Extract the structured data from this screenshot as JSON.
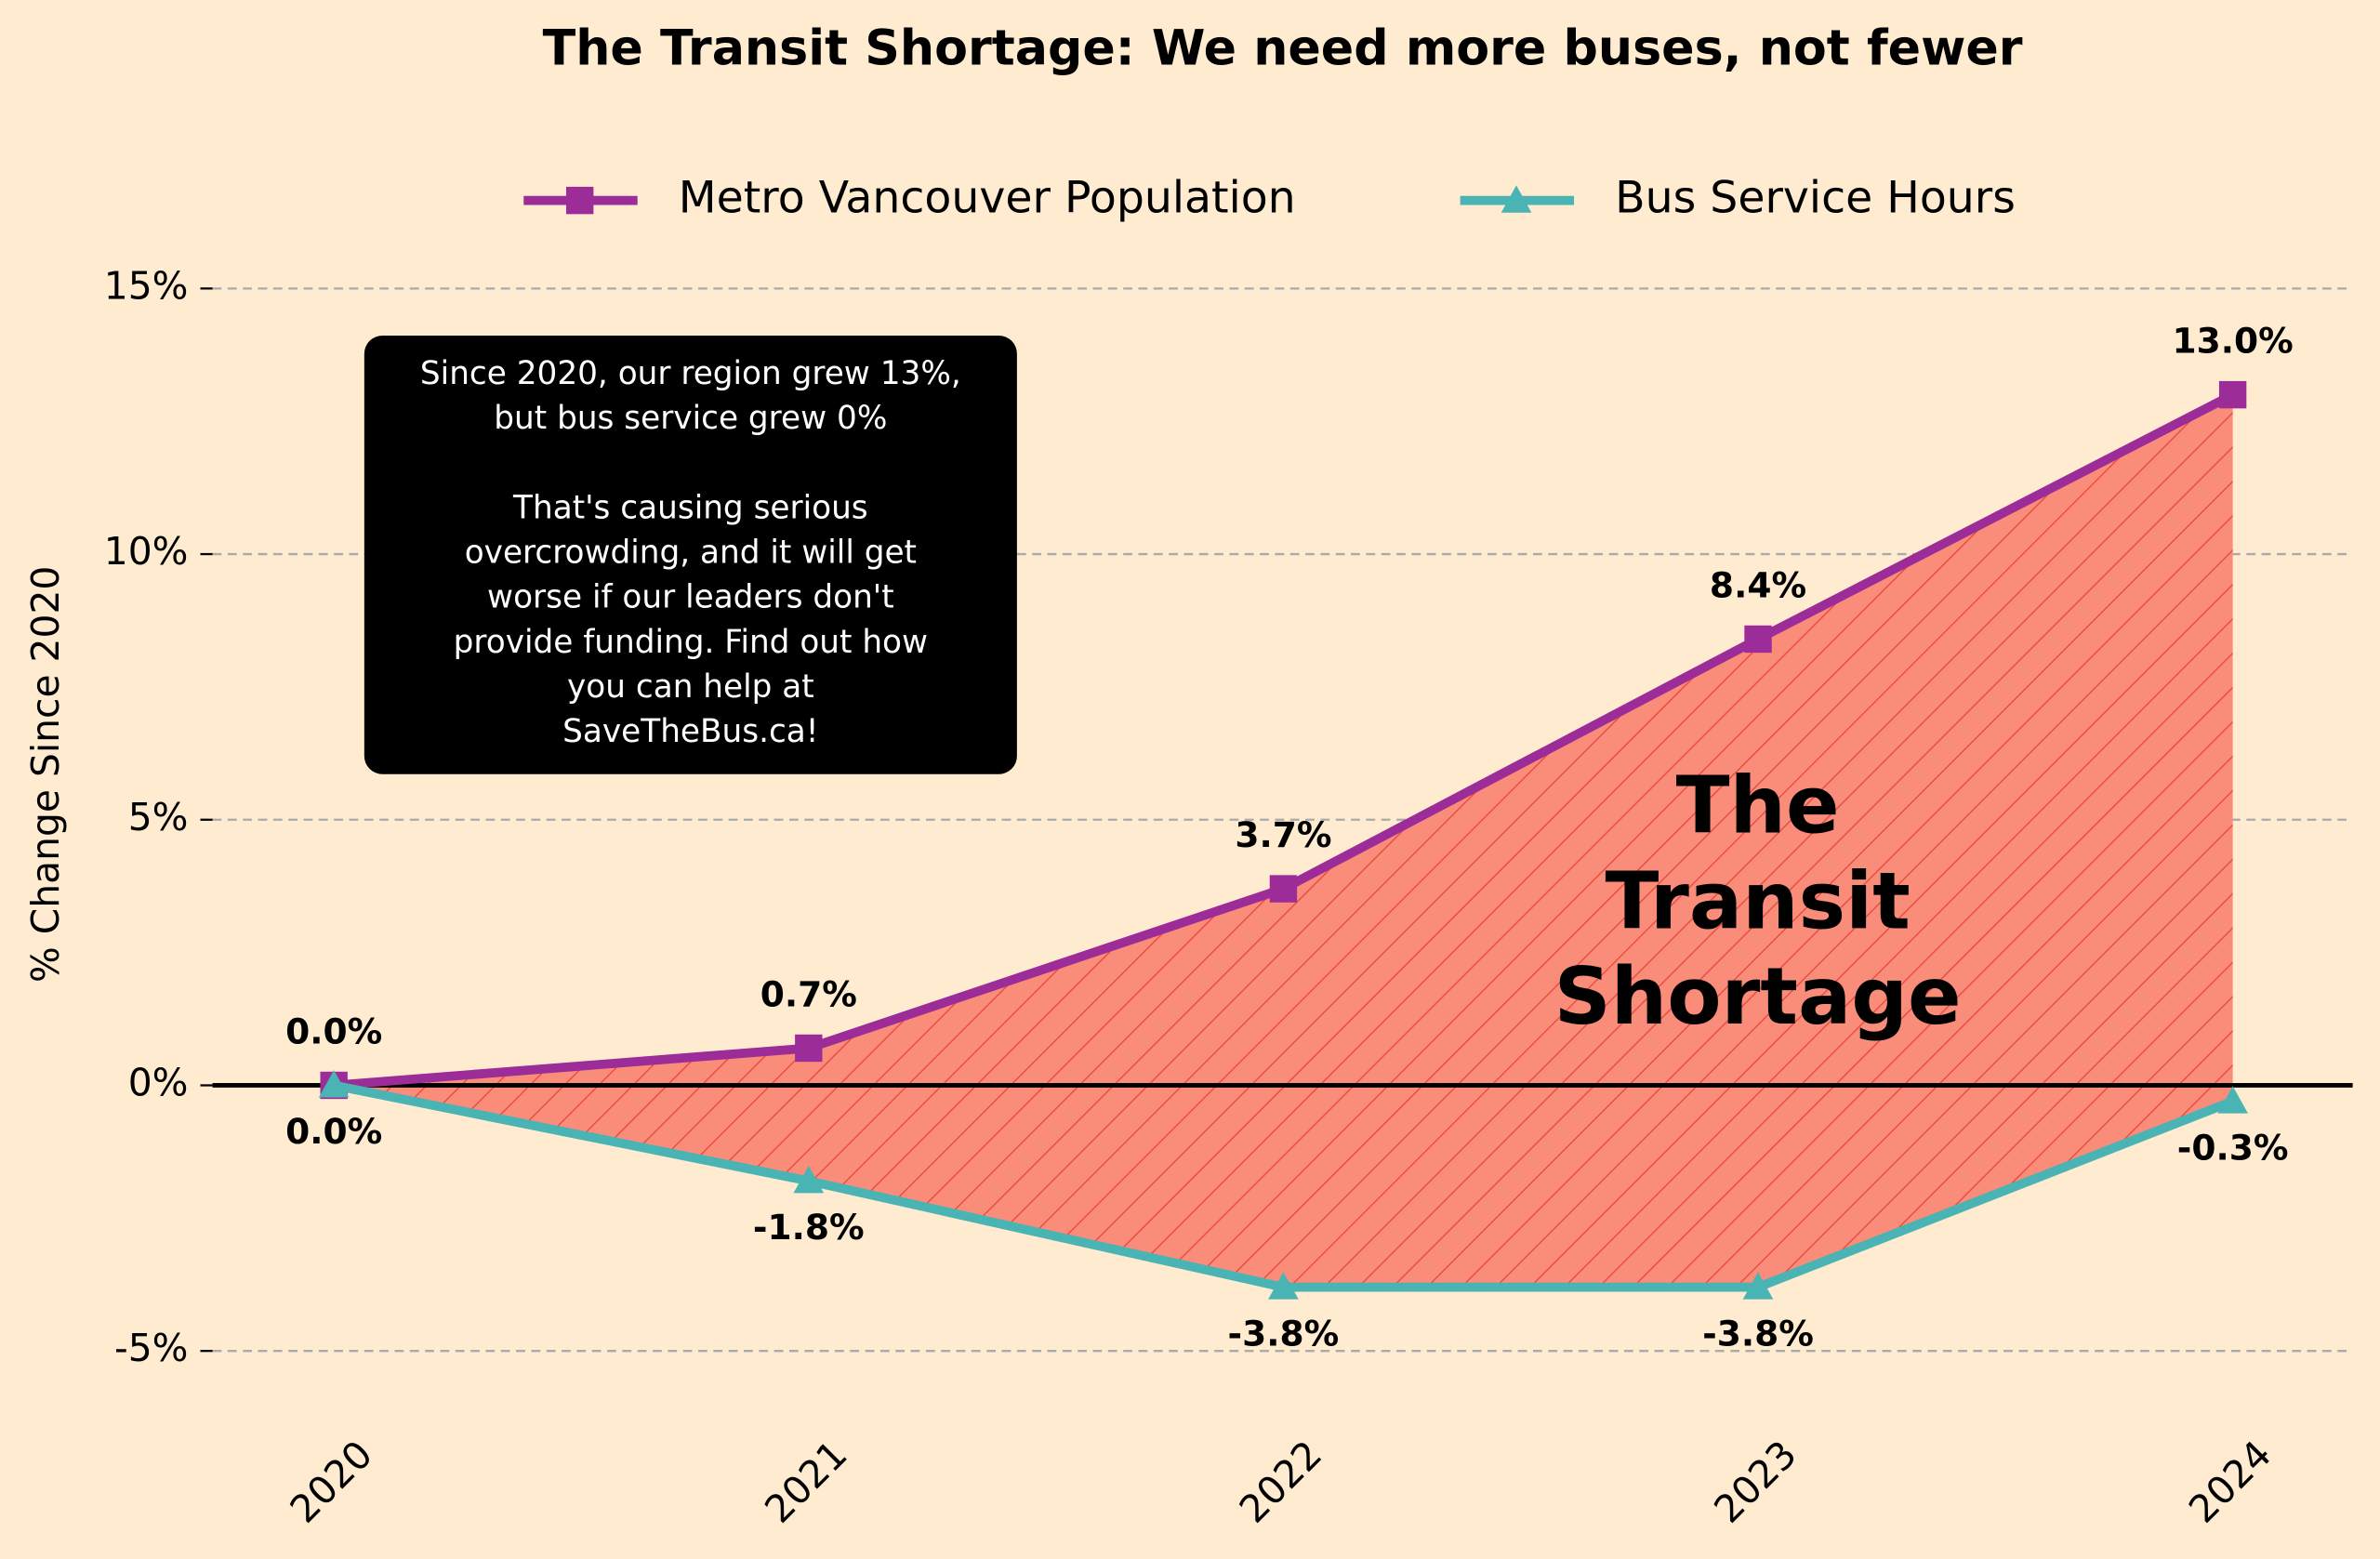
{
  "chart_data": {
    "type": "line",
    "title": "The Transit Shortage: We need more buses, not fewer",
    "y_label": "% Change Since 2020",
    "categories": [
      "2020",
      "2021",
      "2022",
      "2023",
      "2024"
    ],
    "series": [
      {
        "name": "Metro Vancouver Population",
        "color": "#9c2c98",
        "marker": "square",
        "values": [
          0.0,
          0.7,
          3.7,
          8.4,
          13.0
        ],
        "value_labels": [
          "0.0%",
          "0.7%",
          "3.7%",
          "8.4%",
          "13.0%"
        ]
      },
      {
        "name": "Bus Service Hours",
        "color": "#4ab4b4",
        "marker": "triangle",
        "values": [
          0.0,
          -1.8,
          -3.8,
          -3.8,
          -0.3
        ],
        "value_labels": [
          "0.0%",
          "-1.8%",
          "-3.8%",
          "-3.8%",
          "-0.3%"
        ]
      }
    ],
    "ylim": [
      -6,
      17
    ],
    "yticks": [
      {
        "value": -5,
        "label": "-5%"
      },
      {
        "value": 0,
        "label": "0%"
      },
      {
        "value": 5,
        "label": "5%"
      },
      {
        "value": 10,
        "label": "10%"
      },
      {
        "value": 15,
        "label": "15%"
      }
    ],
    "grid": true,
    "reference_line": 0,
    "fill_between_color": "#fa8c7a",
    "hatch_color": "#e8463c",
    "shortage_label": [
      "The",
      "Transit",
      "Shortage"
    ],
    "annotation": [
      [
        "Since 2020, our region grew 13%,",
        "but bus service grew 0%"
      ],
      [
        "That's causing serious",
        "overcrowding, and it will get",
        "worse if our leaders don't",
        "provide funding. Find out how",
        "you can help at",
        "SaveTheBus.ca!"
      ]
    ]
  }
}
